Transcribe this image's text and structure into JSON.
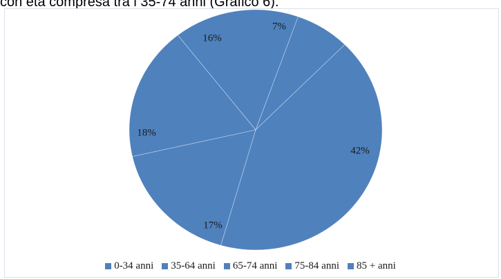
{
  "caption": "con età compresa tra i 35-74 anni (Grafico 6).",
  "colors": {
    "slice": "#4f81bd",
    "slice_border": "#ffffff",
    "frame": "#d9e0ea"
  },
  "chart_data": {
    "type": "pie",
    "title": "",
    "labels": [
      "0-34 anni",
      "35-64 anni",
      "65-74 anni",
      "75-84 anni",
      "85 + anni"
    ],
    "values": [
      7,
      42,
      17,
      18,
      16
    ],
    "display_labels": [
      "7%",
      "42%",
      "17%",
      "18%",
      "16%"
    ],
    "start": "top, slightly right of vertical",
    "direction": "clockwise",
    "legend_position": "bottom",
    "legend": [
      "0-34 anni",
      "35-64 anni",
      "65-74 anni",
      "75-84 anni",
      "85 + anni"
    ]
  }
}
